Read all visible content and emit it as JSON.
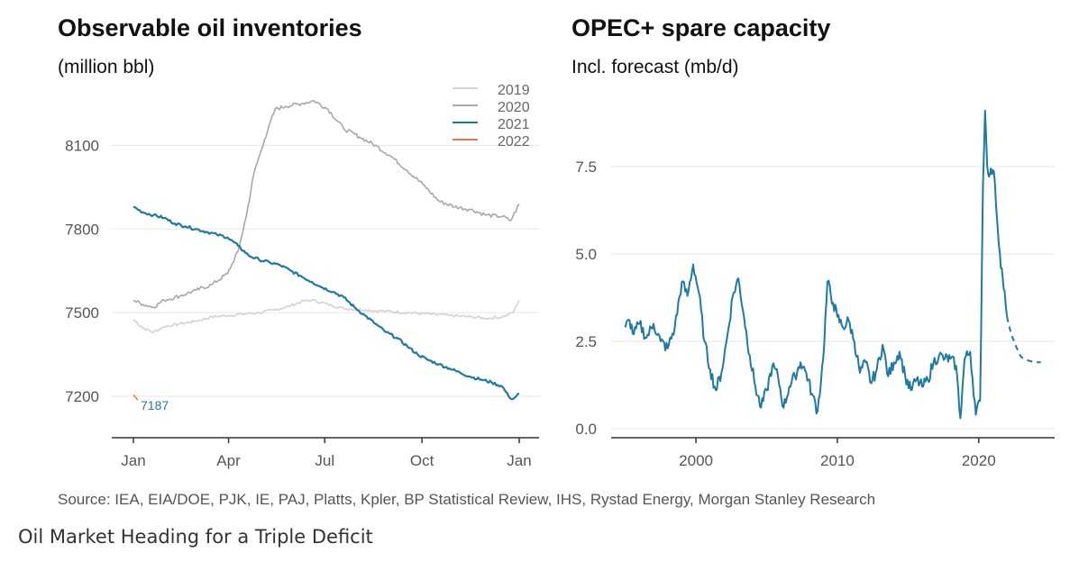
{
  "colors": {
    "s2019": "#d2d2d2",
    "s2020": "#a8a8a8",
    "s2021": "#1f7aa3",
    "s2022": "#e07a52",
    "grid": "#e6e6e6",
    "axis": "#333333"
  },
  "caption": "Oil Market Heading for a Triple Deficit",
  "source": "Source: IEA, EIA/DOE, PJK, IE, PAJ, Platts, Kpler, BP Statistical Review, IHS, Rystad Energy, Morgan Stanley Research",
  "chart_data": [
    {
      "type": "line",
      "title": "Observable oil inventories",
      "subtitle": "(million bbl)",
      "xlabel": "",
      "ylabel": "",
      "x_tick_labels": [
        "Jan",
        "Apr",
        "Jul",
        "Oct",
        "Jan"
      ],
      "x_tick_values": [
        1,
        91,
        182,
        274,
        366
      ],
      "y_ticks": [
        7200,
        7500,
        7800,
        8100
      ],
      "xlim": [
        1,
        366
      ],
      "ylim": [
        7100,
        8250
      ],
      "grid": true,
      "legend": "top-right",
      "annotation": {
        "text": "7187",
        "x": 1,
        "y": 7187
      },
      "series": [
        {
          "name": "2019",
          "color_key": "s2019",
          "points": [
            [
              1,
              7475
            ],
            [
              10,
              7445
            ],
            [
              20,
              7430
            ],
            [
              30,
              7450
            ],
            [
              45,
              7460
            ],
            [
              60,
              7470
            ],
            [
              75,
              7485
            ],
            [
              90,
              7490
            ],
            [
              105,
              7495
            ],
            [
              120,
              7500
            ],
            [
              135,
              7510
            ],
            [
              150,
              7525
            ],
            [
              160,
              7540
            ],
            [
              170,
              7545
            ],
            [
              185,
              7530
            ],
            [
              200,
              7515
            ],
            [
              220,
              7510
            ],
            [
              240,
              7505
            ],
            [
              260,
              7500
            ],
            [
              280,
              7495
            ],
            [
              300,
              7490
            ],
            [
              320,
              7485
            ],
            [
              335,
              7480
            ],
            [
              350,
              7485
            ],
            [
              360,
              7500
            ],
            [
              366,
              7545
            ]
          ]
        },
        {
          "name": "2020",
          "color_key": "s2020",
          "points": [
            [
              1,
              7545
            ],
            [
              10,
              7530
            ],
            [
              20,
              7520
            ],
            [
              30,
              7545
            ],
            [
              45,
              7560
            ],
            [
              60,
              7580
            ],
            [
              75,
              7600
            ],
            [
              90,
              7640
            ],
            [
              100,
              7720
            ],
            [
              108,
              7850
            ],
            [
              115,
              8000
            ],
            [
              125,
              8120
            ],
            [
              135,
              8230
            ],
            [
              145,
              8240
            ],
            [
              160,
              8250
            ],
            [
              172,
              8260
            ],
            [
              185,
              8230
            ],
            [
              200,
              8160
            ],
            [
              215,
              8130
            ],
            [
              230,
              8100
            ],
            [
              245,
              8060
            ],
            [
              260,
              8010
            ],
            [
              275,
              7960
            ],
            [
              290,
              7900
            ],
            [
              305,
              7880
            ],
            [
              320,
              7870
            ],
            [
              335,
              7850
            ],
            [
              350,
              7845
            ],
            [
              358,
              7830
            ],
            [
              366,
              7890
            ]
          ]
        },
        {
          "name": "2021",
          "color_key": "s2021",
          "points": [
            [
              1,
              7880
            ],
            [
              10,
              7860
            ],
            [
              20,
              7850
            ],
            [
              30,
              7840
            ],
            [
              40,
              7820
            ],
            [
              50,
              7810
            ],
            [
              60,
              7800
            ],
            [
              70,
              7790
            ],
            [
              80,
              7780
            ],
            [
              90,
              7770
            ],
            [
              100,
              7740
            ],
            [
              110,
              7705
            ],
            [
              120,
              7690
            ],
            [
              130,
              7680
            ],
            [
              140,
              7670
            ],
            [
              150,
              7650
            ],
            [
              160,
              7630
            ],
            [
              170,
              7610
            ],
            [
              180,
              7590
            ],
            [
              190,
              7575
            ],
            [
              200,
              7555
            ],
            [
              210,
              7520
            ],
            [
              220,
              7490
            ],
            [
              230,
              7460
            ],
            [
              240,
              7430
            ],
            [
              250,
              7410
            ],
            [
              260,
              7380
            ],
            [
              270,
              7350
            ],
            [
              280,
              7330
            ],
            [
              290,
              7315
            ],
            [
              300,
              7300
            ],
            [
              310,
              7285
            ],
            [
              320,
              7270
            ],
            [
              330,
              7260
            ],
            [
              340,
              7250
            ],
            [
              350,
              7235
            ],
            [
              356,
              7200
            ],
            [
              360,
              7190
            ],
            [
              366,
              7210
            ]
          ]
        },
        {
          "name": "2022",
          "color_key": "s2022",
          "points": [
            [
              1,
              7205
            ],
            [
              3,
              7197
            ],
            [
              5,
              7187
            ]
          ]
        }
      ]
    },
    {
      "type": "line",
      "title": "OPEC+ spare capacity",
      "subtitle": "Incl. forecast (mb/d)",
      "xlabel": "",
      "ylabel": "",
      "x_ticks": [
        2000,
        2010,
        2020
      ],
      "y_tick_labels": [
        "0.0",
        "2.5",
        "5.0",
        "7.5"
      ],
      "y_ticks": [
        0,
        2.5,
        5,
        7.5
      ],
      "xlim": [
        1994,
        2025.5
      ],
      "ylim": [
        0,
        9.2
      ],
      "grid": true,
      "series": [
        {
          "name": "",
          "color_key": "s2021",
          "dashed": false,
          "points": [
            [
              1995,
              2.9
            ],
            [
              1995.3,
              3.1
            ],
            [
              1995.6,
              2.7
            ],
            [
              1996,
              3.0
            ],
            [
              1996.5,
              2.6
            ],
            [
              1997,
              3.0
            ],
            [
              1997.5,
              2.5
            ],
            [
              1998,
              2.3
            ],
            [
              1998.5,
              2.9
            ],
            [
              1999,
              4.2
            ],
            [
              1999.4,
              3.8
            ],
            [
              1999.8,
              4.7
            ],
            [
              2000.2,
              3.9
            ],
            [
              2000.6,
              2.5
            ],
            [
              2001,
              1.7
            ],
            [
              2001.4,
              1.1
            ],
            [
              2001.8,
              1.6
            ],
            [
              2002.2,
              2.6
            ],
            [
              2002.6,
              3.8
            ],
            [
              2003,
              4.3
            ],
            [
              2003.4,
              3.2
            ],
            [
              2003.8,
              2.1
            ],
            [
              2004.2,
              1.2
            ],
            [
              2004.6,
              0.6
            ],
            [
              2005,
              1.1
            ],
            [
              2005.4,
              1.8
            ],
            [
              2005.8,
              1.5
            ],
            [
              2006.2,
              0.6
            ],
            [
              2006.6,
              1.2
            ],
            [
              2007,
              1.5
            ],
            [
              2007.4,
              1.9
            ],
            [
              2007.8,
              1.6
            ],
            [
              2008.2,
              1.0
            ],
            [
              2008.6,
              0.5
            ],
            [
              2009,
              2.0
            ],
            [
              2009.3,
              4.2
            ],
            [
              2009.7,
              3.6
            ],
            [
              2010,
              3.2
            ],
            [
              2010.4,
              2.9
            ],
            [
              2010.8,
              3.1
            ],
            [
              2011.2,
              2.5
            ],
            [
              2011.6,
              1.6
            ],
            [
              2012,
              1.9
            ],
            [
              2012.4,
              1.3
            ],
            [
              2012.8,
              1.7
            ],
            [
              2013.2,
              2.4
            ],
            [
              2013.6,
              1.5
            ],
            [
              2014,
              1.9
            ],
            [
              2014.4,
              2.2
            ],
            [
              2014.8,
              1.5
            ],
            [
              2015.2,
              1.1
            ],
            [
              2015.6,
              1.4
            ],
            [
              2016,
              1.2
            ],
            [
              2016.4,
              1.4
            ],
            [
              2016.8,
              1.9
            ],
            [
              2017.2,
              2.1
            ],
            [
              2017.6,
              2.0
            ],
            [
              2018,
              2.0
            ],
            [
              2018.4,
              1.8
            ],
            [
              2018.7,
              0.3
            ],
            [
              2019,
              2.0
            ],
            [
              2019.4,
              2.2
            ],
            [
              2019.8,
              0.4
            ],
            [
              2020.1,
              0.8
            ],
            [
              2020.3,
              7.0
            ],
            [
              2020.45,
              9.1
            ],
            [
              2020.6,
              7.5
            ],
            [
              2020.8,
              7.3
            ],
            [
              2021,
              7.4
            ],
            [
              2021.15,
              7.0
            ],
            [
              2021.3,
              6.0
            ],
            [
              2021.5,
              5.0
            ],
            [
              2021.7,
              4.3
            ],
            [
              2021.9,
              3.6
            ],
            [
              2022.0,
              3.2
            ]
          ]
        },
        {
          "name": "",
          "color_key": "s2021",
          "dashed": true,
          "points": [
            [
              2022.0,
              3.2
            ],
            [
              2022.3,
              2.7
            ],
            [
              2022.7,
              2.3
            ],
            [
              2023.0,
              2.05
            ],
            [
              2023.5,
              1.95
            ],
            [
              2024,
              1.9
            ],
            [
              2024.4,
              1.9
            ]
          ]
        }
      ]
    }
  ]
}
